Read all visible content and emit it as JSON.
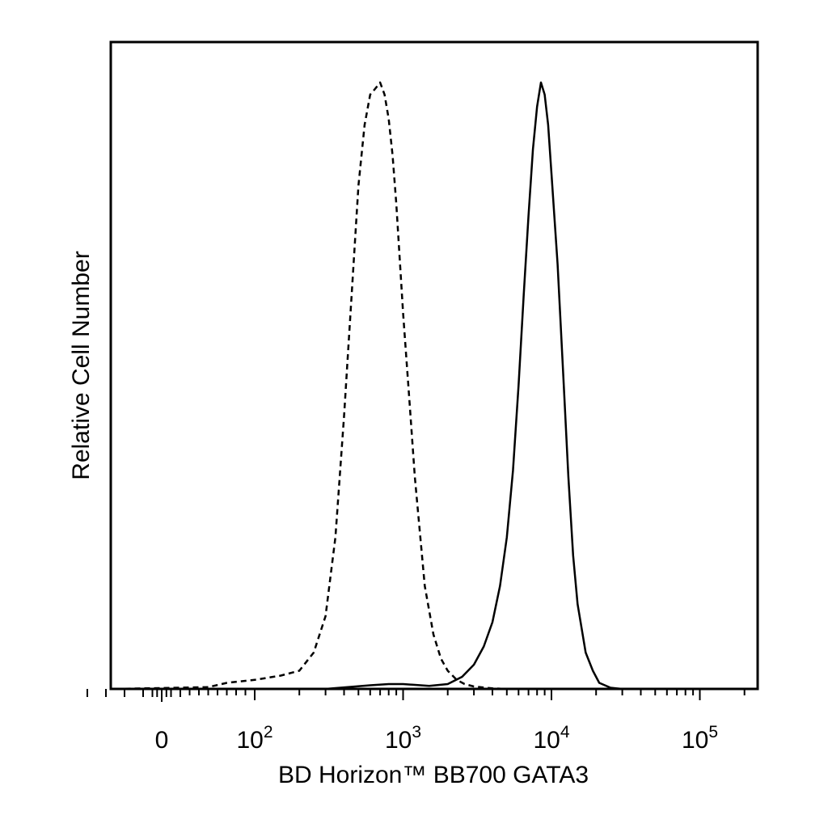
{
  "chart_data": {
    "type": "line",
    "title": "",
    "xlabel": "BD Horizon™ BB700 GATA3",
    "ylabel": "Relative Cell Number",
    "x_scale": "biexponential",
    "x_ticks": [
      {
        "value": 0,
        "base": "0",
        "exp": ""
      },
      {
        "value": 100,
        "base": "10",
        "exp": "2"
      },
      {
        "value": 1000,
        "base": "10",
        "exp": "3"
      },
      {
        "value": 10000,
        "base": "10",
        "exp": "4"
      },
      {
        "value": 100000,
        "base": "10",
        "exp": "5"
      }
    ],
    "ylim": [
      0,
      100
    ],
    "grid": false,
    "legend": "none",
    "series": [
      {
        "style": "dashed",
        "color": "#000000",
        "x": [
          -50,
          50,
          70,
          100,
          150,
          200,
          250,
          300,
          350,
          400,
          450,
          500,
          550,
          600,
          650,
          700,
          750,
          800,
          850,
          900,
          1000,
          1100,
          1200,
          1400,
          1600,
          1800,
          2000,
          2300,
          2600,
          3000,
          4000,
          5000
        ],
        "y": [
          0,
          0.3,
          1,
          1.5,
          2.2,
          3,
          6,
          12,
          25,
          45,
          65,
          83,
          93,
          98,
          99,
          100,
          98,
          94,
          88,
          80,
          62,
          48,
          35,
          17,
          9,
          5,
          3,
          1.5,
          0.8,
          0.4,
          0.1,
          0
        ]
      },
      {
        "style": "solid",
        "color": "#000000",
        "x": [
          300,
          600,
          800,
          1000,
          1500,
          2000,
          2500,
          3000,
          3500,
          4000,
          4500,
          5000,
          5500,
          6000,
          6500,
          7000,
          7500,
          8000,
          8500,
          9000,
          9500,
          10000,
          11000,
          12000,
          13000,
          14000,
          15000,
          17000,
          19000,
          21000,
          25000,
          30000
        ],
        "y": [
          0,
          0.6,
          0.8,
          0.8,
          0.5,
          0.8,
          2,
          4,
          7,
          11,
          17,
          25,
          36,
          50,
          65,
          78,
          89,
          96,
          100,
          98,
          93,
          85,
          70,
          52,
          35,
          22,
          14,
          6,
          3,
          1,
          0.2,
          0
        ]
      }
    ]
  }
}
